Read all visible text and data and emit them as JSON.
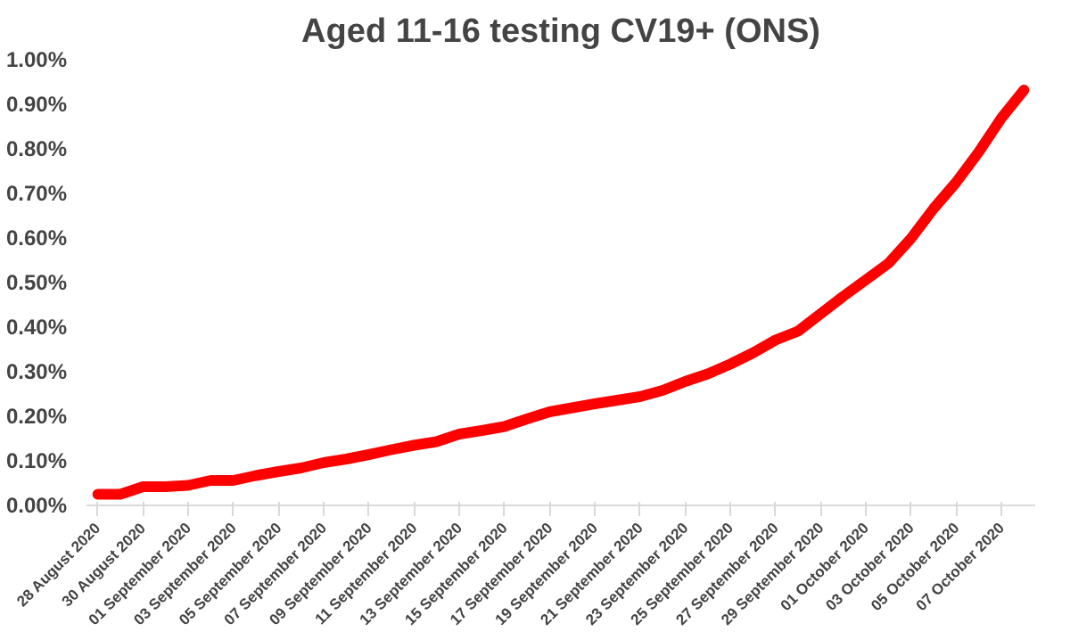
{
  "chart_data": {
    "type": "line",
    "title": "Aged 11-16 testing CV19+ (ONS)",
    "categories": [
      "28 August 2020",
      null,
      "30 August 2020",
      null,
      "01 September 2020",
      null,
      "03 September 2020",
      null,
      "05 September 2020",
      null,
      "07 September 2020",
      null,
      "09 September 2020",
      null,
      "11 September 2020",
      null,
      "13 September 2020",
      null,
      "15 September 2020",
      null,
      "17 September 2020",
      null,
      "19 September 2020",
      null,
      "21 September 2020",
      null,
      "23 September 2020",
      null,
      "25 September 2020",
      null,
      "27 September 2020",
      null,
      "29 September 2020",
      null,
      "01 October 2020",
      null,
      "03 October 2020",
      null,
      "05 October 2020",
      null,
      "07 October 2020",
      null
    ],
    "series": [
      {
        "color": "#ff0000",
        "values": [
          0.025,
          0.025,
          0.042,
          0.042,
          0.045,
          0.056,
          0.056,
          0.067,
          0.076,
          0.084,
          0.096,
          0.104,
          0.114,
          0.125,
          0.135,
          0.143,
          0.16,
          0.168,
          0.177,
          0.194,
          0.21,
          0.219,
          0.228,
          0.236,
          0.244,
          0.258,
          0.278,
          0.295,
          0.317,
          0.342,
          0.371,
          0.391,
          0.43,
          0.469,
          0.506,
          0.543,
          0.599,
          0.666,
          0.725,
          0.793,
          0.869,
          0.932
        ]
      }
    ],
    "ylim": [
      0,
      1.0
    ],
    "yticks": [
      {
        "value": 0,
        "label": "0.00%"
      },
      {
        "value": 0.1,
        "label": "0.10%"
      },
      {
        "value": 0.2,
        "label": "0.20%"
      },
      {
        "value": 0.3,
        "label": "0.30%"
      },
      {
        "value": 0.4,
        "label": "0.40%"
      },
      {
        "value": 0.5,
        "label": "0.50%"
      },
      {
        "value": 0.6,
        "label": "0.60%"
      },
      {
        "value": 0.7,
        "label": "0.70%"
      },
      {
        "value": 0.8,
        "label": "0.80%"
      },
      {
        "value": 0.9,
        "label": "0.90%"
      },
      {
        "value": 1.0,
        "label": "1.00%"
      }
    ],
    "grid": false,
    "marker": "none",
    "line_style": "solid"
  }
}
